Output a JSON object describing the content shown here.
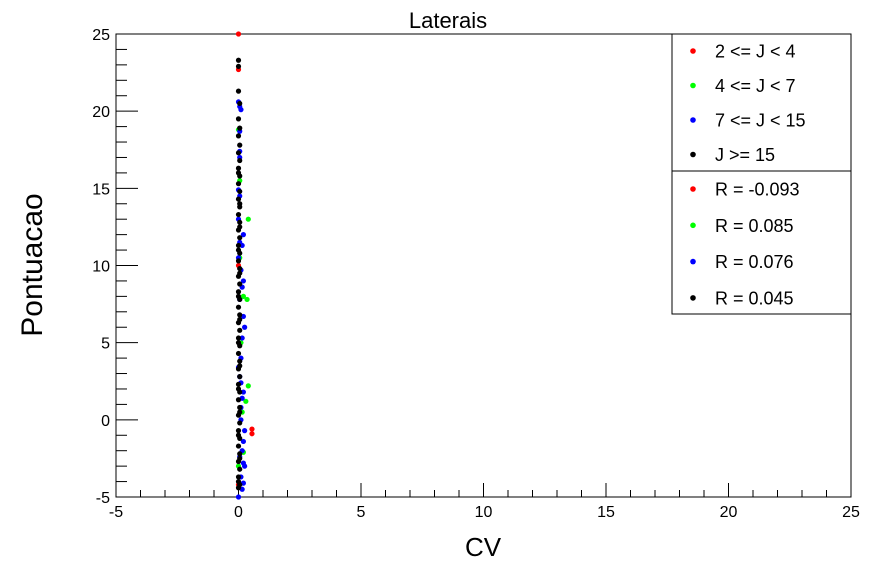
{
  "chart_data": {
    "type": "scatter",
    "title": "Laterais",
    "xlabel": "CV",
    "ylabel": "Pontuacao",
    "xlim": [
      -5,
      25
    ],
    "ylim": [
      -5,
      25
    ],
    "x_ticks": [
      -5,
      0,
      5,
      10,
      15,
      20,
      25
    ],
    "y_ticks": [
      -5,
      0,
      5,
      10,
      15,
      20,
      25
    ],
    "grid": false,
    "legend_position": "top-right",
    "legend_groups": [
      [
        "2 <= J < 4",
        "4 <= J < 7",
        "7 <= J < 15",
        "J >= 15"
      ],
      [
        "R = -0.093",
        "R = 0.085",
        "R = 0.076",
        "R = 0.045"
      ]
    ],
    "series": [
      {
        "name": "2 <= J < 4",
        "r_label": "R = -0.093",
        "color": "#ff0000",
        "x": [
          0.0,
          0.0,
          0.55,
          0.55,
          0.0,
          0.0
        ],
        "y": [
          25.0,
          22.7,
          -0.6,
          -0.9,
          10.0,
          -4.2
        ]
      },
      {
        "name": "4 <= J < 7",
        "r_label": "R = 0.085",
        "color": "#00ff00",
        "x": [
          0.4,
          0.35,
          0.4,
          0.3,
          0.2,
          0.0,
          0.1,
          0.05,
          0.2,
          0.0,
          0.15,
          0.05
        ],
        "y": [
          13.0,
          7.8,
          2.2,
          1.2,
          -2.1,
          18.8,
          5.0,
          10.5,
          8.0,
          -3.0,
          0.5,
          15.5
        ]
      },
      {
        "name": "7 <= J < 15",
        "r_label": "R = 0.076",
        "color": "#0000ff",
        "x": [
          0.0,
          0.05,
          0.1,
          0.05,
          0.05,
          0.05,
          0.0,
          0.05,
          0.0,
          0.05,
          0.0,
          0.2,
          0.15,
          0.1,
          0.2,
          0.15,
          0.05,
          0.2,
          0.25,
          0.15,
          0.1,
          0.0,
          0.05,
          0.1,
          0.2,
          0.15,
          0.1,
          0.1,
          0.25,
          0.2,
          0.15,
          0.05,
          0.2,
          0.25,
          0.1,
          0.2,
          0.15,
          0.0
        ],
        "y": [
          20.6,
          20.3,
          20.1,
          18.7,
          17.4,
          17.0,
          14.9,
          14.5,
          13.0,
          11.5,
          10.5,
          12.0,
          11.3,
          9.7,
          9.0,
          8.6,
          7.8,
          6.7,
          6.0,
          5.3,
          4.0,
          3.4,
          2.8,
          2.4,
          1.8,
          1.4,
          0.8,
          0.0,
          -0.7,
          -1.4,
          -2.0,
          -2.4,
          -2.8,
          -3.0,
          -3.7,
          -4.1,
          -4.5,
          -5.0
        ]
      },
      {
        "name": "J >= 15",
        "r_label": "R = 0.045",
        "color": "#000000",
        "x": [
          0.0,
          0.0,
          0.0,
          0.05,
          0.0,
          0.05,
          0.0,
          0.05,
          0.0,
          0.05,
          0.0,
          0.05,
          0.0,
          0.05,
          0.0,
          0.05,
          0.0,
          0.05,
          0.0,
          0.05,
          0.0,
          0.05,
          0.0,
          0.05,
          0.0,
          0.05,
          0.0,
          0.05,
          0.0,
          0.05,
          0.0,
          0.05,
          0.0,
          0.05,
          0.0,
          0.05,
          0.0,
          0.05,
          0.0,
          0.05,
          0.0,
          0.05,
          0.0,
          0.05,
          0.0,
          0.05,
          0.0,
          0.05,
          0.0,
          0.05,
          0.0,
          0.05,
          0.0,
          0.05,
          0.0,
          0.05,
          0.0,
          0.05,
          0.0,
          0.05,
          0.0,
          0.05,
          0.0,
          0.05,
          0.0,
          0.05,
          0.0
        ],
        "y": [
          23.3,
          22.9,
          21.3,
          20.5,
          19.5,
          18.9,
          18.4,
          17.8,
          17.3,
          16.8,
          16.3,
          15.8,
          15.3,
          14.8,
          14.3,
          13.8,
          13.3,
          12.8,
          12.3,
          11.8,
          11.3,
          10.8,
          10.3,
          9.8,
          9.3,
          8.8,
          8.3,
          7.8,
          7.3,
          6.8,
          6.3,
          5.8,
          5.3,
          4.8,
          4.3,
          3.8,
          3.3,
          2.8,
          2.3,
          1.8,
          1.3,
          0.8,
          0.3,
          -0.2,
          -0.7,
          -1.2,
          -1.7,
          -2.2,
          -2.7,
          -3.2,
          -3.7,
          -4.2,
          -4.4,
          12.5,
          11.0,
          9.5,
          8.0,
          6.5,
          5.0,
          3.5,
          2.0,
          0.5,
          -1.0,
          -2.5,
          -4.0,
          14.0,
          16.0
        ]
      }
    ]
  }
}
